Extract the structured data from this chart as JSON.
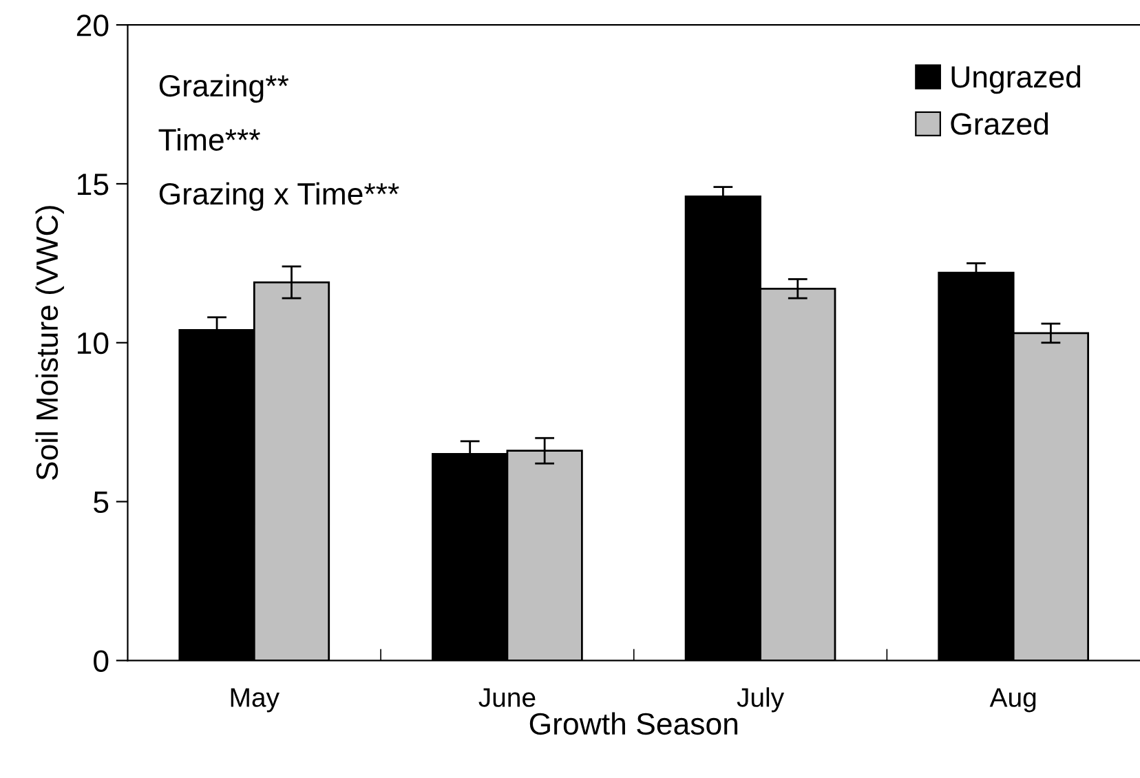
{
  "chart_data": {
    "type": "bar",
    "xlabel": "Growth Season",
    "ylabel": "Soil Moisture (VWC)",
    "categories": [
      "May",
      "June",
      "July",
      "Aug"
    ],
    "series": [
      {
        "name": "Ungrazed",
        "color": "#000000",
        "values": [
          10.4,
          6.5,
          14.6,
          12.2
        ],
        "errors": [
          0.4,
          0.4,
          0.3,
          0.3
        ]
      },
      {
        "name": "Grazed",
        "color": "#c0c0c0",
        "values": [
          11.9,
          6.6,
          11.7,
          10.3
        ],
        "errors": [
          0.5,
          0.4,
          0.3,
          0.3
        ]
      }
    ],
    "ylim": [
      0,
      20
    ],
    "yticks": [
      0,
      5,
      10,
      15,
      20
    ],
    "grid": false,
    "legend": "top right",
    "annotations": [
      "Grazing**",
      "Time***",
      "Grazing x Time***"
    ]
  }
}
